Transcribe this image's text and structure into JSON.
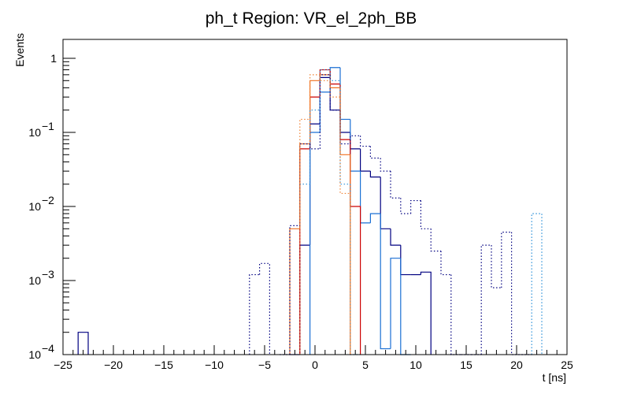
{
  "chart_data": {
    "type": "histogram",
    "title": "ph_t Region: VR_el_2ph_BB",
    "xlabel": "t [ns]",
    "ylabel": "Events",
    "xlim": [
      -25,
      25
    ],
    "ylim": [
      0.0001,
      1.8
    ],
    "yscale": "log",
    "bin_width": 1,
    "xticks": [
      -25,
      -20,
      -15,
      -10,
      -5,
      0,
      5,
      10,
      15,
      20,
      25
    ],
    "yticks": [
      {
        "value": 0.0001,
        "base": "10",
        "exp": "−4"
      },
      {
        "value": 0.001,
        "base": "10",
        "exp": "−3"
      },
      {
        "value": 0.01,
        "base": "10",
        "exp": "−2"
      },
      {
        "value": 0.1,
        "base": "10",
        "exp": "−1"
      },
      {
        "value": 1,
        "base": "1",
        "exp": ""
      }
    ],
    "series": [
      {
        "name": "navy-solid",
        "color": "#000080",
        "style": "solid",
        "bins": [
          {
            "x": -23,
            "y": 0.0002
          },
          {
            "x": -2,
            "y": 0.0001
          },
          {
            "x": -1,
            "y": 0.003
          },
          {
            "x": 0,
            "y": 0.13
          },
          {
            "x": 1,
            "y": 0.55
          },
          {
            "x": 2,
            "y": 0.2
          },
          {
            "x": 3,
            "y": 0.1
          },
          {
            "x": 4,
            "y": 0.06
          },
          {
            "x": 5,
            "y": 0.03
          },
          {
            "x": 6,
            "y": 0.025
          },
          {
            "x": 7,
            "y": 0.005
          },
          {
            "x": 8,
            "y": 0.003
          },
          {
            "x": 9,
            "y": 0.0012
          },
          {
            "x": 10,
            "y": 0.0012
          },
          {
            "x": 11,
            "y": 0.0013
          }
        ]
      },
      {
        "name": "blue-solid",
        "color": "#1a6fd4",
        "style": "solid",
        "bins": [
          {
            "x": 0,
            "y": 0.1
          },
          {
            "x": 1,
            "y": 0.35
          },
          {
            "x": 2,
            "y": 0.75
          },
          {
            "x": 3,
            "y": 0.15
          },
          {
            "x": 4,
            "y": 0.03
          },
          {
            "x": 5,
            "y": 0.006
          },
          {
            "x": 6,
            "y": 0.008
          },
          {
            "x": 7,
            "y": 0.00012
          },
          {
            "x": 8,
            "y": 0.002
          },
          {
            "x": 9,
            "y": 0.0001
          }
        ]
      },
      {
        "name": "red-solid",
        "color": "#cc0000",
        "style": "solid",
        "bins": [
          {
            "x": -1,
            "y": 0.06
          },
          {
            "x": 0,
            "y": 0.3
          },
          {
            "x": 1,
            "y": 0.7
          },
          {
            "x": 2,
            "y": 0.45
          },
          {
            "x": 3,
            "y": 0.08
          },
          {
            "x": 4,
            "y": 0.01
          }
        ]
      },
      {
        "name": "orange-solid",
        "color": "#f07020",
        "style": "solid",
        "bins": [
          {
            "x": -2,
            "y": 0.005
          },
          {
            "x": -1,
            "y": 0.07
          },
          {
            "x": 0,
            "y": 0.5
          },
          {
            "x": 1,
            "y": 0.6
          },
          {
            "x": 2,
            "y": 0.4
          },
          {
            "x": 3,
            "y": 0.05
          }
        ]
      },
      {
        "name": "navy-dotted",
        "color": "#000080",
        "style": "dotted",
        "bins": [
          {
            "x": -6,
            "y": 0.0012
          },
          {
            "x": -5,
            "y": 0.0017
          },
          {
            "x": -3,
            "y": 0.0001
          },
          {
            "x": -2,
            "y": 0.0055
          },
          {
            "x": -1,
            "y": 0.07
          },
          {
            "x": 0,
            "y": 0.06
          },
          {
            "x": 1,
            "y": 0.6
          },
          {
            "x": 2,
            "y": 0.2
          },
          {
            "x": 3,
            "y": 0.07
          },
          {
            "x": 4,
            "y": 0.09
          },
          {
            "x": 5,
            "y": 0.065
          },
          {
            "x": 6,
            "y": 0.045
          },
          {
            "x": 7,
            "y": 0.03
          },
          {
            "x": 8,
            "y": 0.013
          },
          {
            "x": 9,
            "y": 0.008
          },
          {
            "x": 10,
            "y": 0.012
          },
          {
            "x": 11,
            "y": 0.005
          },
          {
            "x": 12,
            "y": 0.0025
          },
          {
            "x": 13,
            "y": 0.0012
          },
          {
            "x": 14,
            "y": 0.0001
          },
          {
            "x": 15,
            "y": 0.0001
          },
          {
            "x": 16,
            "y": 0.0001
          },
          {
            "x": 17,
            "y": 0.003
          },
          {
            "x": 18,
            "y": 0.0008
          },
          {
            "x": 19,
            "y": 0.0045
          },
          {
            "x": 20,
            "y": 0.0001
          },
          {
            "x": 21,
            "y": 0.0001
          }
        ]
      },
      {
        "name": "blue-dotted",
        "color": "#2a8fd8",
        "style": "dotted",
        "bins": [
          {
            "x": -1,
            "y": 0.02
          },
          {
            "x": 0,
            "y": 0.2
          },
          {
            "x": 1,
            "y": 0.7
          },
          {
            "x": 2,
            "y": 0.5
          },
          {
            "x": 3,
            "y": 0.02
          },
          {
            "x": 4,
            "y": 0.0001
          },
          {
            "x": 22,
            "y": 0.008
          }
        ]
      },
      {
        "name": "orange-dotted",
        "color": "#f08030",
        "style": "dotted",
        "bins": [
          {
            "x": -1,
            "y": 0.15
          },
          {
            "x": 0,
            "y": 0.6
          },
          {
            "x": 1,
            "y": 0.5
          },
          {
            "x": 2,
            "y": 0.3
          },
          {
            "x": 3,
            "y": 0.015
          }
        ]
      }
    ]
  }
}
